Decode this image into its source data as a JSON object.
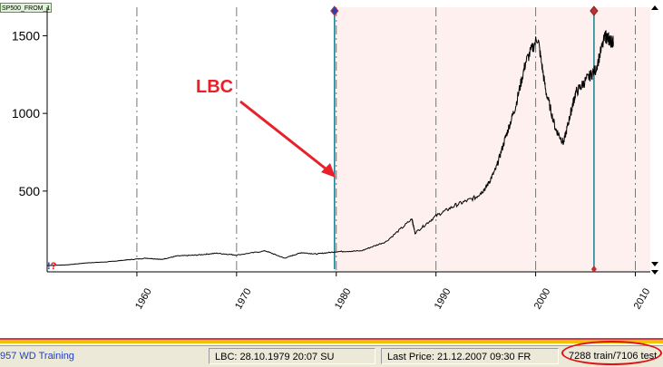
{
  "window": {
    "tab_label": "SP500_FROM_1..."
  },
  "chart_data": {
    "type": "line",
    "title": "",
    "xlabel": "",
    "ylabel": "",
    "xlim": [
      1951.0,
      2011.5
    ],
    "ylim": [
      -20,
      1660
    ],
    "y_ticks": [
      500,
      1000,
      1500
    ],
    "y_tick_labels": [
      "500",
      "1000",
      "1500"
    ],
    "x_ticks": [
      1960,
      1970,
      1980,
      1990,
      2000,
      2010
    ],
    "x_tick_labels": [
      "1960",
      "1970",
      "1980",
      "1990",
      "2000",
      "2010"
    ],
    "grid": "vertical dashed lines at x ticks",
    "series": [
      {
        "color": "#000000",
        "x": [
          1951.0,
          1953.0,
          1955.0,
          1957.0,
          1959.0,
          1961.0,
          1962.5,
          1964.0,
          1966.0,
          1968.0,
          1970.0,
          1972.9,
          1974.8,
          1976.5,
          1978.0,
          1980.0,
          1982.5,
          1985.0,
          1987.6,
          1987.9,
          1990.0,
          1992.0,
          1994.0,
          1995.0,
          1996.0,
          1997.0,
          1998.0,
          1999.0,
          2000.2,
          2001.0,
          2002.0,
          2002.8,
          2003.5,
          2004.0,
          2005.0,
          2006.0,
          2007.0,
          2007.4,
          2007.8
        ],
        "values": [
          21,
          25,
          38,
          44,
          57,
          68,
          60,
          82,
          88,
          100,
          88,
          115,
          68,
          104,
          95,
          110,
          115,
          175,
          320,
          230,
          340,
          410,
          460,
          520,
          640,
          850,
          1050,
          1330,
          1490,
          1150,
          900,
          810,
          1000,
          1130,
          1210,
          1280,
          1500,
          1470,
          1460
        ]
      }
    ],
    "split_lines": [
      {
        "x": 1979.82,
        "color": "#1a7f8e",
        "label": "LBC"
      },
      {
        "x": 2005.85,
        "color": "#1a7f8e"
      }
    ],
    "test_region": {
      "from": 1979.82,
      "to": 2011.5,
      "color": "#fdf0ee"
    },
    "annotation": {
      "text": "LBC",
      "color": "#e8202a"
    },
    "corner_marks": {
      "exclamation": "!",
      "question": "?"
    }
  },
  "status": {
    "mode": "957 WD  Training",
    "lbc": "LBC: 28.10.1979  20:07 SU",
    "last_price": "Last Price: 21.12.2007  09:30 FR",
    "counts": "7288 train/7106 test"
  },
  "colors": {
    "accent_blue": "#1f3fbf",
    "highlight_red": "#e01010",
    "stripe_yellow": "#f2c200",
    "stripe_red": "#d04040"
  }
}
